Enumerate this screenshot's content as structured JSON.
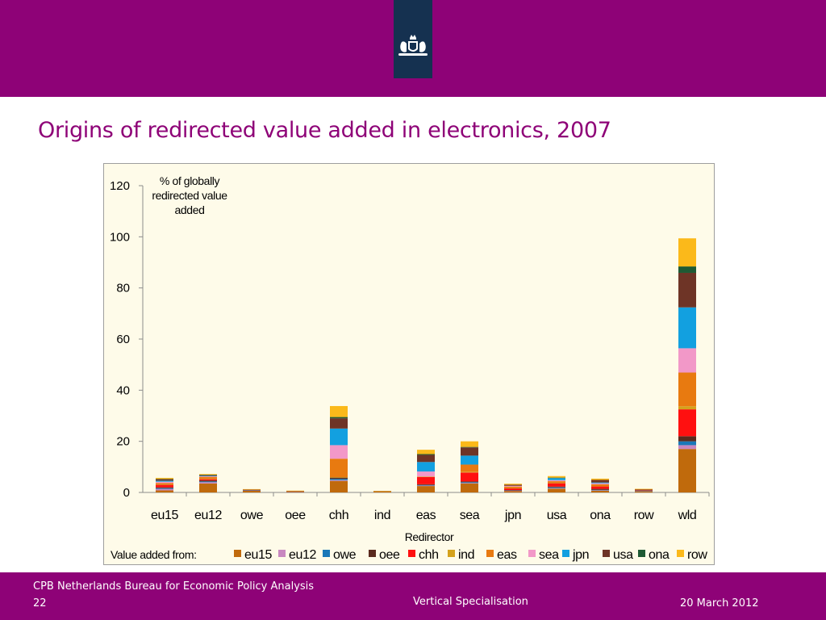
{
  "header": {
    "emblem": "coat-of-arms-emblem"
  },
  "slide": {
    "title": "Origins of redirected value added in electronics, 2007"
  },
  "footer": {
    "organization": "CPB Netherlands Bureau for Economic Policy Analysis",
    "page_number": "22",
    "center_text": "Vertical Specialisation",
    "date": "20 March 2012"
  },
  "colors": {
    "brand": "#8e0277",
    "emblem_bg": "#153150",
    "plot_bg": "#fefbe9"
  },
  "chart_data": {
    "type": "bar",
    "stacked": true,
    "title": "",
    "ylabel": "% of globally redirected value added",
    "xlabel": "Redirector",
    "legend_title": "Value added from:",
    "legend_position": "bottom",
    "ylim": [
      0,
      120
    ],
    "yticks": [
      0,
      20,
      40,
      60,
      80,
      100,
      120
    ],
    "grid": false,
    "categories": [
      "eu15",
      "eu12",
      "owe",
      "oee",
      "chh",
      "ind",
      "eas",
      "sea",
      "jpn",
      "usa",
      "ona",
      "row",
      "wld"
    ],
    "series": [
      {
        "name": "eu15",
        "color": "#c06a0c",
        "values": [
          0.8,
          3.5,
          0.7,
          0.2,
          4.5,
          0.3,
          2.5,
          3.5,
          0.6,
          1.5,
          0.7,
          0.5,
          17.0
        ]
      },
      {
        "name": "eu12",
        "color": "#c888c0",
        "values": [
          0.6,
          0.5,
          0.1,
          0.1,
          0.3,
          0.0,
          0.2,
          0.2,
          0.1,
          0.2,
          0.2,
          0.1,
          1.5
        ]
      },
      {
        "name": "owe",
        "color": "#1a78b8",
        "values": [
          0.3,
          0.3,
          0.1,
          0.0,
          0.5,
          0.0,
          0.2,
          0.3,
          0.1,
          0.3,
          0.1,
          0.1,
          1.5
        ]
      },
      {
        "name": "oee",
        "color": "#5a2a1e",
        "values": [
          0.3,
          0.4,
          0.1,
          0.1,
          0.5,
          0.0,
          0.3,
          0.3,
          0.1,
          0.3,
          0.4,
          0.2,
          2.0
        ]
      },
      {
        "name": "chh",
        "color": "#ff1010",
        "values": [
          1.0,
          0.5,
          0.0,
          0.0,
          0.0,
          0.0,
          2.8,
          3.5,
          0.7,
          1.3,
          1.0,
          0.1,
          10.5
        ]
      },
      {
        "name": "ind",
        "color": "#d4a21c",
        "values": [
          0.1,
          0.1,
          0.0,
          0.0,
          0.2,
          0.0,
          0.2,
          0.3,
          0.1,
          0.2,
          0.1,
          0.0,
          1.2
        ]
      },
      {
        "name": "eas",
        "color": "#e87a10",
        "values": [
          0.6,
          0.8,
          0.1,
          0.1,
          7.2,
          0.1,
          0.0,
          2.8,
          0.6,
          0.6,
          0.7,
          0.1,
          13.2
        ]
      },
      {
        "name": "sea",
        "color": "#f298c8",
        "values": [
          0.5,
          0.2,
          0.0,
          0.0,
          5.3,
          0.0,
          2.0,
          0.0,
          0.3,
          0.4,
          0.4,
          0.0,
          9.5
        ]
      },
      {
        "name": "jpn",
        "color": "#12a0e0",
        "values": [
          0.4,
          0.2,
          0.0,
          0.0,
          6.5,
          0.0,
          3.7,
          3.5,
          0.0,
          0.8,
          0.3,
          0.0,
          16.0
        ]
      },
      {
        "name": "usa",
        "color": "#6e3426",
        "values": [
          0.6,
          0.3,
          0.1,
          0.1,
          4.0,
          0.1,
          2.8,
          3.2,
          0.4,
          0.0,
          1.0,
          0.2,
          13.5
        ]
      },
      {
        "name": "ona",
        "color": "#1e5a34",
        "values": [
          0.1,
          0.1,
          0.0,
          0.0,
          0.5,
          0.0,
          0.3,
          0.2,
          0.0,
          0.2,
          0.0,
          0.0,
          2.5
        ]
      },
      {
        "name": "row",
        "color": "#fbb91a",
        "values": [
          0.4,
          0.3,
          0.1,
          0.1,
          4.3,
          0.1,
          1.7,
          2.2,
          0.4,
          0.6,
          0.5,
          0.1,
          11.0
        ]
      }
    ]
  }
}
